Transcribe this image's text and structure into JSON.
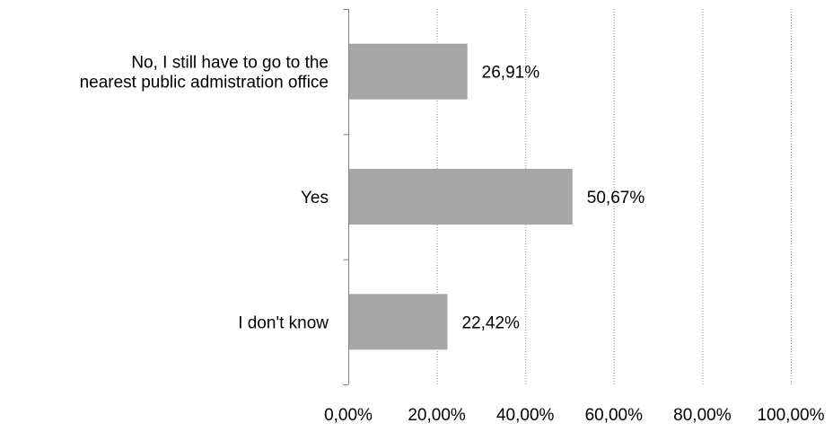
{
  "chart_data": {
    "type": "bar",
    "orientation": "horizontal",
    "categories": [
      "No, I still have to go to the\nnearest public admistration office",
      "Yes",
      "I don't know"
    ],
    "values": [
      26.91,
      50.67,
      22.42
    ],
    "data_labels": [
      "26,91%",
      "50,67%",
      "22,42%"
    ],
    "xlim": [
      0,
      100
    ],
    "x_ticks": [
      0,
      20,
      40,
      60,
      80,
      100
    ],
    "x_tick_labels": [
      "0,00%",
      "20,00%",
      "40,00%",
      "60,00%",
      "80,00%",
      "100,00%"
    ],
    "grid": "vertical dotted",
    "legend": "none",
    "bar_color": "#a6a6a6"
  }
}
